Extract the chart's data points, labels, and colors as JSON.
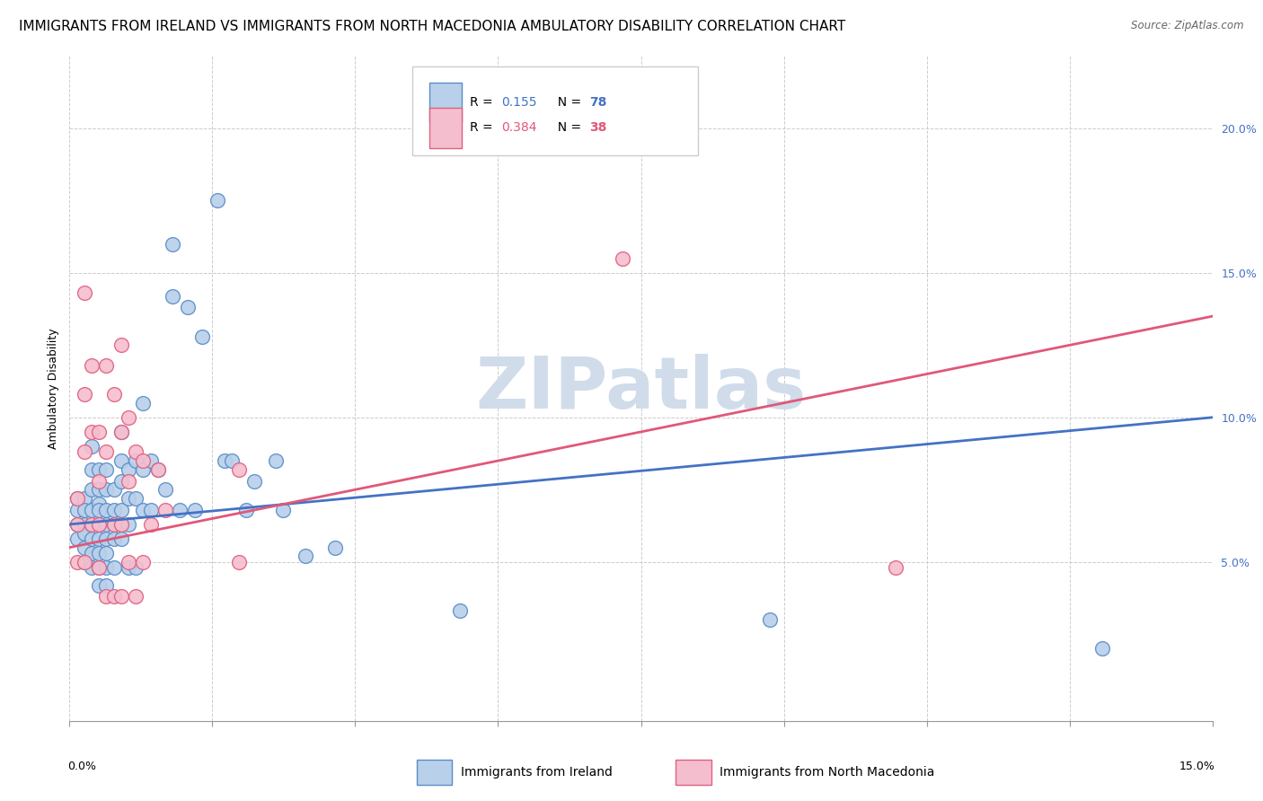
{
  "title": "IMMIGRANTS FROM IRELAND VS IMMIGRANTS FROM NORTH MACEDONIA AMBULATORY DISABILITY CORRELATION CHART",
  "source": "Source: ZipAtlas.com",
  "ylabel": "Ambulatory Disability",
  "xlim": [
    0.0,
    0.155
  ],
  "ylim": [
    -0.005,
    0.225
  ],
  "yticks_right": [
    0.05,
    0.1,
    0.15,
    0.2
  ],
  "ytick_labels_right": [
    "5.0%",
    "10.0%",
    "15.0%",
    "20.0%"
  ],
  "r_ireland": 0.155,
  "n_ireland": 78,
  "r_macedonia": 0.384,
  "n_macedonia": 38,
  "ireland_color": "#b8d0ea",
  "ireland_edge_color": "#5b8dc8",
  "ireland_line_color": "#4472c4",
  "macedonia_color": "#f5bece",
  "macedonia_edge_color": "#e06080",
  "macedonia_line_color": "#e05878",
  "watermark": "ZIPatlas",
  "watermark_color": "#d0dcea",
  "ireland_scatter_x": [
    0.001,
    0.001,
    0.001,
    0.001,
    0.002,
    0.002,
    0.002,
    0.002,
    0.002,
    0.002,
    0.003,
    0.003,
    0.003,
    0.003,
    0.003,
    0.003,
    0.003,
    0.003,
    0.004,
    0.004,
    0.004,
    0.004,
    0.004,
    0.004,
    0.004,
    0.004,
    0.004,
    0.005,
    0.005,
    0.005,
    0.005,
    0.005,
    0.005,
    0.005,
    0.005,
    0.006,
    0.006,
    0.006,
    0.006,
    0.006,
    0.007,
    0.007,
    0.007,
    0.007,
    0.007,
    0.007,
    0.008,
    0.008,
    0.008,
    0.008,
    0.009,
    0.009,
    0.009,
    0.01,
    0.01,
    0.01,
    0.011,
    0.011,
    0.012,
    0.013,
    0.014,
    0.014,
    0.015,
    0.016,
    0.017,
    0.018,
    0.02,
    0.021,
    0.022,
    0.024,
    0.025,
    0.028,
    0.029,
    0.032,
    0.036,
    0.053,
    0.095,
    0.14
  ],
  "ireland_scatter_y": [
    0.072,
    0.068,
    0.063,
    0.058,
    0.072,
    0.068,
    0.063,
    0.06,
    0.055,
    0.05,
    0.09,
    0.082,
    0.075,
    0.068,
    0.063,
    0.058,
    0.053,
    0.048,
    0.082,
    0.075,
    0.07,
    0.068,
    0.063,
    0.058,
    0.053,
    0.048,
    0.042,
    0.082,
    0.075,
    0.068,
    0.063,
    0.058,
    0.053,
    0.048,
    0.042,
    0.075,
    0.068,
    0.063,
    0.058,
    0.048,
    0.095,
    0.085,
    0.078,
    0.068,
    0.063,
    0.058,
    0.082,
    0.072,
    0.063,
    0.048,
    0.085,
    0.072,
    0.048,
    0.105,
    0.082,
    0.068,
    0.085,
    0.068,
    0.082,
    0.075,
    0.16,
    0.142,
    0.068,
    0.138,
    0.068,
    0.128,
    0.175,
    0.085,
    0.085,
    0.068,
    0.078,
    0.085,
    0.068,
    0.052,
    0.055,
    0.033,
    0.03,
    0.02
  ],
  "macedonia_scatter_x": [
    0.001,
    0.001,
    0.001,
    0.002,
    0.002,
    0.002,
    0.002,
    0.003,
    0.003,
    0.003,
    0.004,
    0.004,
    0.004,
    0.004,
    0.005,
    0.005,
    0.005,
    0.006,
    0.006,
    0.006,
    0.007,
    0.007,
    0.007,
    0.007,
    0.008,
    0.008,
    0.008,
    0.009,
    0.009,
    0.01,
    0.01,
    0.011,
    0.012,
    0.013,
    0.023,
    0.023,
    0.075,
    0.112
  ],
  "macedonia_scatter_y": [
    0.072,
    0.063,
    0.05,
    0.143,
    0.108,
    0.088,
    0.05,
    0.118,
    0.095,
    0.063,
    0.095,
    0.078,
    0.063,
    0.048,
    0.118,
    0.088,
    0.038,
    0.108,
    0.063,
    0.038,
    0.125,
    0.095,
    0.063,
    0.038,
    0.1,
    0.078,
    0.05,
    0.088,
    0.038,
    0.085,
    0.05,
    0.063,
    0.082,
    0.068,
    0.082,
    0.05,
    0.155,
    0.048
  ],
  "ireland_line_y0": 0.063,
  "ireland_line_y1": 0.1,
  "macedonia_line_y0": 0.055,
  "macedonia_line_y1": 0.135,
  "title_fontsize": 11,
  "axis_label_fontsize": 9,
  "tick_fontsize": 9,
  "legend_fontsize": 10
}
